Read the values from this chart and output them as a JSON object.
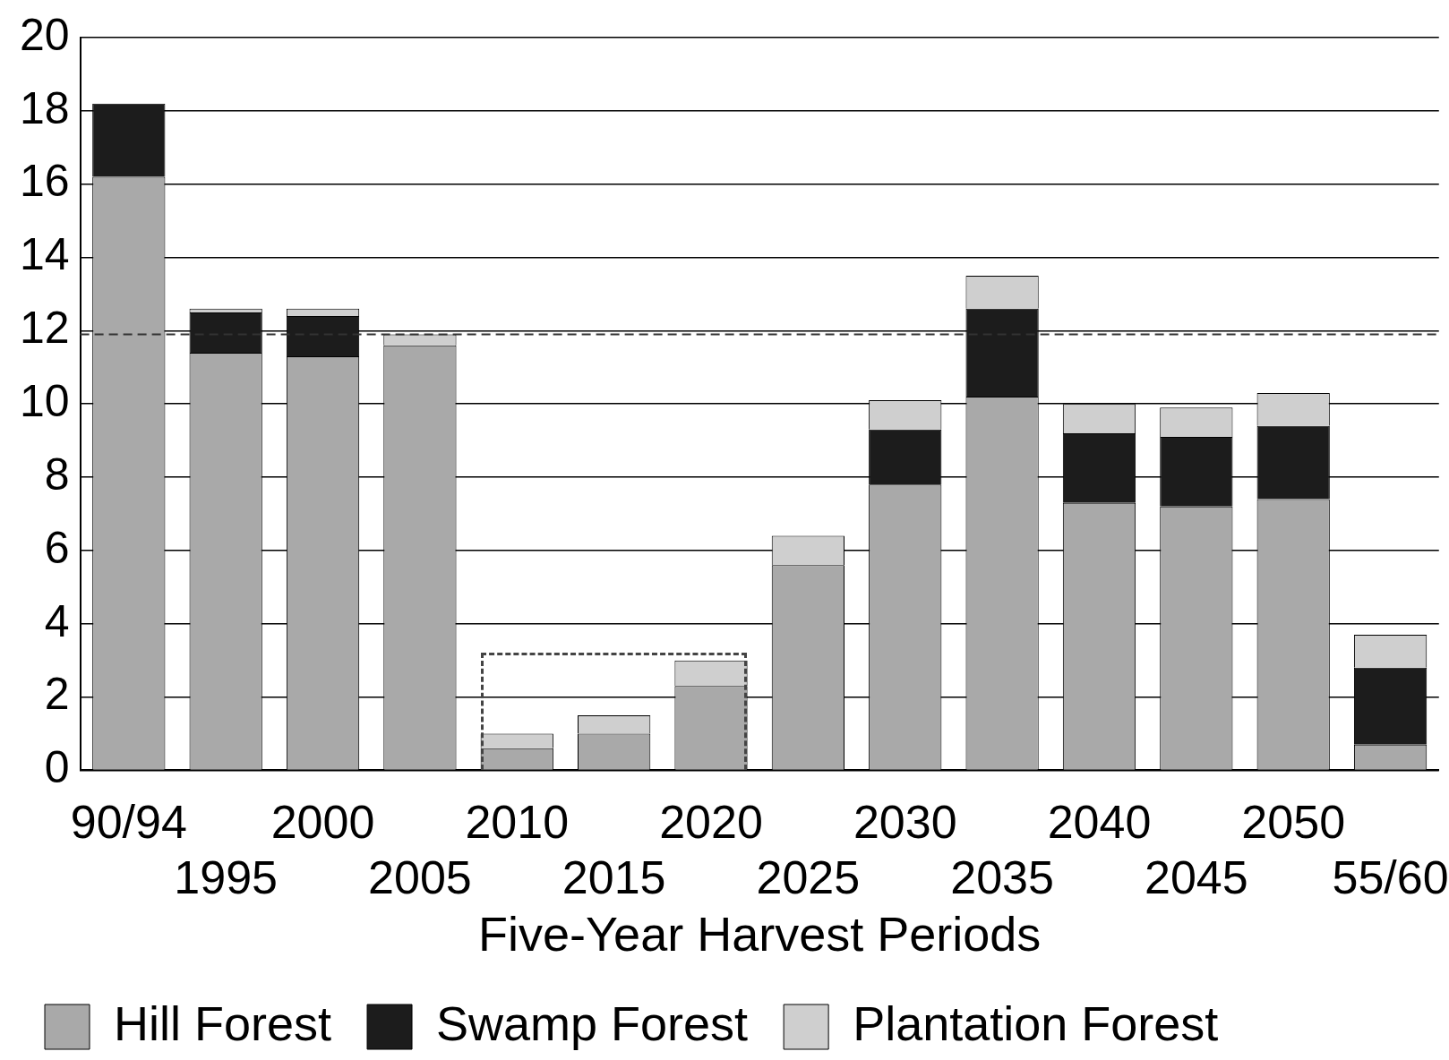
{
  "chart_data": {
    "type": "bar",
    "stacked": true,
    "xlabel": "Five-Year Harvest Periods",
    "categories": [
      "90/94",
      "1995",
      "2000",
      "2005",
      "2010",
      "2015",
      "2020",
      "2025",
      "2030",
      "2035",
      "2040",
      "2045",
      "2050",
      "55/60"
    ],
    "series": [
      {
        "name": "Hill Forest",
        "color": "#a9a9a9",
        "values": [
          16.2,
          11.4,
          11.3,
          11.6,
          0.6,
          1.0,
          2.3,
          5.6,
          7.8,
          10.2,
          7.3,
          7.2,
          7.4,
          0.7
        ]
      },
      {
        "name": "Swamp Forest",
        "color": "#1c1c1c",
        "values": [
          2.0,
          1.1,
          1.1,
          0,
          0,
          0,
          0,
          0,
          1.5,
          2.4,
          1.9,
          1.9,
          2.0,
          2.1
        ]
      },
      {
        "name": "Plantation Forest",
        "color": "#cfcfcf",
        "values": [
          0,
          0.1,
          0.2,
          0.3,
          0.4,
          0.5,
          0.7,
          0.8,
          0.8,
          0.9,
          0.8,
          0.8,
          0.9,
          0.9
        ]
      }
    ],
    "ylim": [
      0,
      20
    ],
    "yticks": [
      0,
      2,
      4,
      6,
      8,
      10,
      12,
      14,
      16,
      18,
      20
    ],
    "grid": "y",
    "legend": "bottom left",
    "ref_lines": [
      {
        "axis": "y",
        "value": 11.9,
        "color": "#333333",
        "line_style": "dashed"
      }
    ]
  }
}
